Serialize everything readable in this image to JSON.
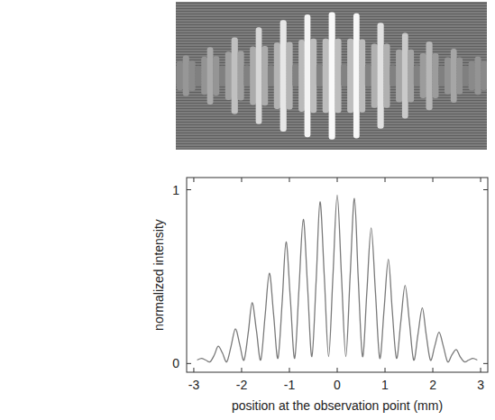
{
  "chart_data": {
    "type": "line",
    "xlabel": "position at the observation point (mm)",
    "ylabel": "normalized intensity",
    "color": "#7a7a7a",
    "xlim": [
      -3.15,
      3.15
    ],
    "ylim": [
      -0.05,
      1.07
    ],
    "xticks": [
      -3,
      -2,
      -1,
      0,
      1,
      2,
      3
    ],
    "yticks": [
      0,
      1
    ],
    "grid": false,
    "x": [
      -2.93,
      -2.84,
      -2.75,
      -2.66,
      -2.57,
      -2.49,
      -2.4,
      -2.31,
      -2.22,
      -2.13,
      -2.04,
      -1.95,
      -1.86,
      -1.78,
      -1.69,
      -1.6,
      -1.51,
      -1.42,
      -1.33,
      -1.24,
      -1.15,
      -1.07,
      -0.98,
      -0.89,
      -0.8,
      -0.71,
      -0.62,
      -0.53,
      -0.44,
      -0.36,
      -0.27,
      -0.18,
      -0.09,
      0,
      0.09,
      0.18,
      0.27,
      0.36,
      0.44,
      0.53,
      0.62,
      0.71,
      0.8,
      0.89,
      0.98,
      1.07,
      1.15,
      1.24,
      1.33,
      1.42,
      1.51,
      1.6,
      1.69,
      1.78,
      1.86,
      1.95,
      2.04,
      2.13,
      2.22,
      2.31,
      2.4,
      2.49,
      2.57,
      2.66,
      2.75,
      2.84,
      2.93
    ],
    "values": [
      0.02,
      0.03,
      0.02,
      0.01,
      0.05,
      0.1,
      0.06,
      0.01,
      0.1,
      0.2,
      0.11,
      0.02,
      0.18,
      0.35,
      0.19,
      0.02,
      0.27,
      0.52,
      0.28,
      0.03,
      0.36,
      0.7,
      0.37,
      0.03,
      0.43,
      0.83,
      0.44,
      0.04,
      0.48,
      0.93,
      0.5,
      0.04,
      0.5,
      0.97,
      0.5,
      0.04,
      0.5,
      0.95,
      0.49,
      0.04,
      0.41,
      0.78,
      0.41,
      0.03,
      0.31,
      0.6,
      0.31,
      0.03,
      0.24,
      0.45,
      0.24,
      0.02,
      0.17,
      0.32,
      0.17,
      0.02,
      0.1,
      0.18,
      0.1,
      0.01,
      0.05,
      0.08,
      0.04,
      0.01,
      0.02,
      0.03,
      0.02
    ]
  }
}
